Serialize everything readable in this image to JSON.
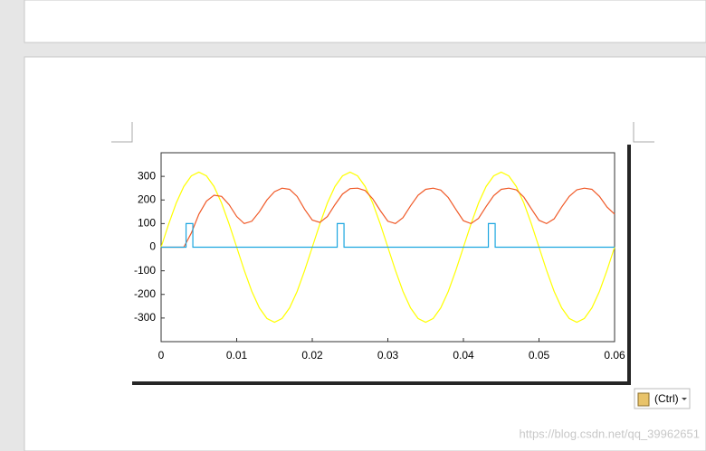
{
  "chart_data": {
    "type": "line",
    "xlim": [
      0,
      0.06
    ],
    "ylim": [
      -400,
      400
    ],
    "xticks": [
      0,
      0.01,
      0.02,
      0.03,
      0.04,
      0.05,
      0.06
    ],
    "yticks": [
      -300,
      -200,
      -100,
      0,
      100,
      200,
      300
    ],
    "x": [
      0,
      0.001,
      0.002,
      0.003,
      0.004,
      0.005,
      0.006,
      0.007,
      0.008,
      0.009,
      0.01,
      0.011,
      0.012,
      0.013,
      0.014,
      0.015,
      0.016,
      0.017,
      0.018,
      0.019,
      0.02,
      0.021,
      0.022,
      0.023,
      0.024,
      0.025,
      0.026,
      0.027,
      0.028,
      0.029,
      0.03,
      0.031,
      0.032,
      0.033,
      0.034,
      0.035,
      0.036,
      0.037,
      0.038,
      0.039,
      0.04,
      0.041,
      0.042,
      0.043,
      0.044,
      0.045,
      0.046,
      0.047,
      0.048,
      0.049,
      0.05,
      0.051,
      0.052,
      0.053,
      0.054,
      0.055,
      0.056,
      0.057,
      0.058,
      0.059,
      0.06
    ],
    "series": [
      {
        "color": "#ffff00",
        "values": [
          0,
          98,
          187,
          257,
          302,
          318,
          302,
          257,
          187,
          98,
          0,
          -98,
          -187,
          -257,
          -302,
          -318,
          -302,
          -257,
          -187,
          -98,
          0,
          98,
          187,
          257,
          302,
          318,
          302,
          257,
          187,
          98,
          0,
          -98,
          -187,
          -257,
          -302,
          -318,
          -302,
          -257,
          -187,
          -98,
          0,
          98,
          187,
          257,
          302,
          318,
          302,
          257,
          187,
          98,
          0,
          -98,
          -187,
          -257,
          -302,
          -318,
          -302,
          -257,
          -187,
          -98,
          0
        ]
      },
      {
        "color": "#f05a28",
        "values": [
          0,
          0,
          0,
          0,
          60,
          140,
          195,
          220,
          215,
          180,
          130,
          100,
          110,
          150,
          200,
          235,
          250,
          245,
          215,
          160,
          115,
          105,
          130,
          180,
          225,
          248,
          250,
          240,
          205,
          155,
          110,
          100,
          125,
          175,
          220,
          245,
          250,
          242,
          210,
          160,
          112,
          100,
          122,
          172,
          218,
          245,
          250,
          243,
          212,
          162,
          114,
          100,
          120,
          170,
          215,
          243,
          250,
          245,
          215,
          170,
          140
        ]
      },
      {
        "color": "#1ca6e0",
        "x": [
          0,
          0.0033,
          0.0033,
          0.0042,
          0.0042,
          0.0233,
          0.0233,
          0.0242,
          0.0242,
          0.0433,
          0.0433,
          0.0442,
          0.0442,
          0.06
        ],
        "values": [
          0,
          0,
          100,
          100,
          0,
          0,
          100,
          100,
          0,
          0,
          100,
          100,
          0,
          0
        ]
      }
    ]
  },
  "paste_button": "(Ctrl)",
  "watermark": "https://blog.csdn.net/qq_39962651"
}
